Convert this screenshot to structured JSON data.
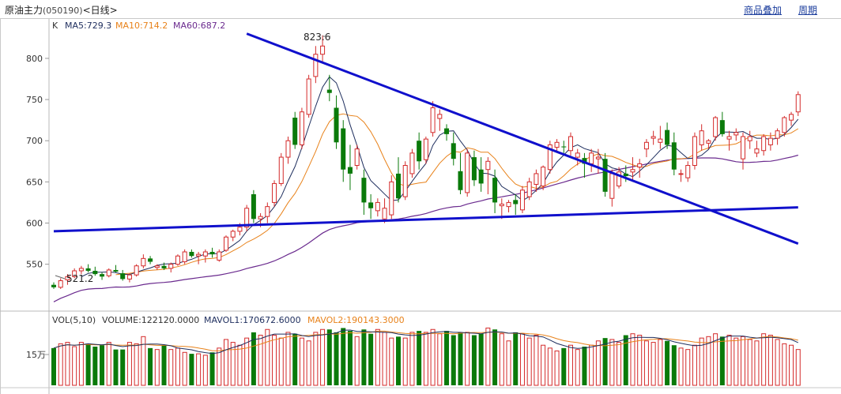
{
  "header": {
    "title": "原油主力",
    "code": "(050190)",
    "period": "<日线>",
    "link_overlay": "商品叠加",
    "link_cycle": "周期"
  },
  "legend": {
    "k_label": "K",
    "ma5": "MA5:729.3",
    "ma10": "MA10:714.2",
    "ma60": "MA60:687.2",
    "vol": "VOL(5,10)",
    "volume": "VOLUME:122120.0000",
    "mavol1": "MAVOL1:170672.6000",
    "mavol2": "MAVOL2:190143.3000"
  },
  "annotations": {
    "high": "823.6",
    "low": "521.2",
    "vol_tick": "15万"
  },
  "colors": {
    "up": "#d42a2a",
    "down": "#0a7a0a",
    "ma5": "#1e2e5e",
    "ma10": "#e8821a",
    "ma60": "#6a2a8e",
    "trend": "#1010cc",
    "mavol1": "#1e2e5e",
    "mavol2": "#e8821a"
  },
  "chart_data": {
    "type": "candlestick",
    "y_ticks": [
      550,
      600,
      650,
      700,
      750,
      800
    ],
    "ylim": [
      495,
      845
    ],
    "candles": [
      [
        525,
        528,
        520,
        522
      ],
      [
        522,
        533,
        520,
        530
      ],
      [
        531,
        538,
        525,
        535
      ],
      [
        535,
        545,
        533,
        542
      ],
      [
        542,
        548,
        538,
        545
      ],
      [
        545,
        550,
        540,
        542
      ],
      [
        542,
        547,
        536,
        538
      ],
      [
        538,
        540,
        531,
        535
      ],
      [
        536,
        545,
        534,
        543
      ],
      [
        543,
        549,
        540,
        541
      ],
      [
        539,
        543,
        530,
        532
      ],
      [
        532,
        539,
        528,
        537
      ],
      [
        537,
        550,
        535,
        548
      ],
      [
        548,
        562,
        545,
        557
      ],
      [
        557,
        560,
        550,
        553
      ],
      [
        546,
        550,
        543,
        548
      ],
      [
        548,
        552,
        543,
        545
      ],
      [
        545,
        552,
        540,
        550
      ],
      [
        550,
        562,
        548,
        560
      ],
      [
        553,
        568,
        550,
        565
      ],
      [
        565,
        568,
        558,
        560
      ],
      [
        560,
        565,
        550,
        562
      ],
      [
        560,
        568,
        552,
        565
      ],
      [
        565,
        570,
        558,
        562
      ],
      [
        555,
        568,
        553,
        565
      ],
      [
        567,
        585,
        565,
        583
      ],
      [
        583,
        592,
        578,
        590
      ],
      [
        590,
        600,
        585,
        595
      ],
      [
        595,
        622,
        590,
        618
      ],
      [
        635,
        640,
        600,
        605
      ],
      [
        605,
        612,
        595,
        608
      ],
      [
        608,
        625,
        600,
        620
      ],
      [
        625,
        652,
        620,
        648
      ],
      [
        648,
        685,
        645,
        680
      ],
      [
        680,
        705,
        672,
        700
      ],
      [
        728,
        735,
        690,
        695
      ],
      [
        695,
        740,
        690,
        735
      ],
      [
        732,
        780,
        728,
        775
      ],
      [
        778,
        815,
        770,
        805
      ],
      [
        805,
        828,
        795,
        815
      ],
      [
        762,
        780,
        748,
        758
      ],
      [
        740,
        755,
        690,
        698
      ],
      [
        715,
        725,
        650,
        665
      ],
      [
        668,
        695,
        640,
        660
      ],
      [
        670,
        695,
        665,
        690
      ],
      [
        655,
        665,
        610,
        625
      ],
      [
        625,
        635,
        605,
        618
      ],
      [
        615,
        630,
        608,
        625
      ],
      [
        605,
        630,
        600,
        618
      ],
      [
        610,
        658,
        605,
        650
      ],
      [
        660,
        680,
        625,
        630
      ],
      [
        632,
        675,
        628,
        670
      ],
      [
        660,
        690,
        655,
        685
      ],
      [
        700,
        710,
        665,
        675
      ],
      [
        677,
        705,
        672,
        702
      ],
      [
        710,
        748,
        705,
        740
      ],
      [
        727,
        738,
        712,
        732
      ],
      [
        715,
        720,
        700,
        708
      ],
      [
        697,
        710,
        670,
        678
      ],
      [
        663,
        685,
        635,
        640
      ],
      [
        637,
        690,
        632,
        685
      ],
      [
        680,
        688,
        645,
        652
      ],
      [
        665,
        680,
        638,
        648
      ],
      [
        665,
        680,
        635,
        675
      ],
      [
        655,
        665,
        612,
        625
      ],
      [
        621,
        630,
        605,
        623
      ],
      [
        620,
        628,
        613,
        625
      ],
      [
        628,
        635,
        610,
        623
      ],
      [
        616,
        645,
        612,
        640
      ],
      [
        632,
        655,
        628,
        650
      ],
      [
        647,
        665,
        638,
        660
      ],
      [
        645,
        670,
        640,
        668
      ],
      [
        665,
        700,
        660,
        695
      ],
      [
        692,
        702,
        686,
        698
      ],
      [
        693,
        700,
        685,
        692
      ],
      [
        688,
        710,
        682,
        705
      ],
      [
        680,
        690,
        670,
        685
      ],
      [
        679,
        685,
        655,
        672
      ],
      [
        672,
        690,
        662,
        685
      ],
      [
        678,
        690,
        660,
        680
      ],
      [
        678,
        685,
        632,
        638
      ],
      [
        630,
        665,
        620,
        660
      ],
      [
        645,
        668,
        642,
        662
      ],
      [
        660,
        670,
        650,
        657
      ],
      [
        662,
        680,
        650,
        665
      ],
      [
        668,
        678,
        655,
        672
      ],
      [
        690,
        702,
        680,
        698
      ],
      [
        703,
        712,
        695,
        705
      ],
      [
        698,
        718,
        690,
        702
      ],
      [
        713,
        722,
        690,
        695
      ],
      [
        698,
        710,
        658,
        665
      ],
      [
        660,
        665,
        650,
        660
      ],
      [
        655,
        675,
        650,
        670
      ],
      [
        670,
        710,
        665,
        705
      ],
      [
        695,
        720,
        688,
        712
      ],
      [
        697,
        702,
        690,
        700
      ],
      [
        705,
        730,
        700,
        728
      ],
      [
        725,
        735,
        705,
        708
      ],
      [
        702,
        712,
        688,
        705
      ],
      [
        707,
        715,
        700,
        710
      ],
      [
        678,
        710,
        665,
        705
      ],
      [
        700,
        712,
        690,
        705
      ],
      [
        685,
        700,
        680,
        690
      ],
      [
        688,
        708,
        682,
        705
      ],
      [
        695,
        710,
        688,
        703
      ],
      [
        703,
        715,
        695,
        712
      ],
      [
        710,
        730,
        705,
        728
      ],
      [
        725,
        735,
        718,
        732
      ],
      [
        735,
        760,
        730,
        756
      ]
    ],
    "volumes": [
      130,
      145,
      150,
      135,
      150,
      145,
      135,
      140,
      150,
      125,
      125,
      150,
      145,
      170,
      130,
      125,
      140,
      125,
      130,
      115,
      110,
      110,
      105,
      115,
      130,
      160,
      150,
      140,
      165,
      185,
      175,
      195,
      175,
      165,
      185,
      180,
      165,
      155,
      185,
      195,
      195,
      185,
      200,
      190,
      170,
      195,
      180,
      195,
      185,
      165,
      170,
      165,
      185,
      190,
      185,
      195,
      180,
      190,
      175,
      185,
      185,
      175,
      180,
      200,
      195,
      180,
      155,
      185,
      180,
      165,
      175,
      140,
      130,
      120,
      130,
      140,
      125,
      135,
      140,
      155,
      165,
      160,
      150,
      175,
      180,
      175,
      155,
      150,
      160,
      155,
      140,
      130,
      125,
      140,
      165,
      170,
      180,
      170,
      175,
      165,
      170,
      160,
      155,
      180,
      175,
      160,
      145,
      140,
      125
    ],
    "trend_lines": [
      {
        "points": [
          [
            0,
            590
          ],
          [
            108,
            619
          ]
        ]
      },
      {
        "points": [
          [
            28,
            830
          ],
          [
            108,
            575
          ]
        ]
      }
    ]
  }
}
